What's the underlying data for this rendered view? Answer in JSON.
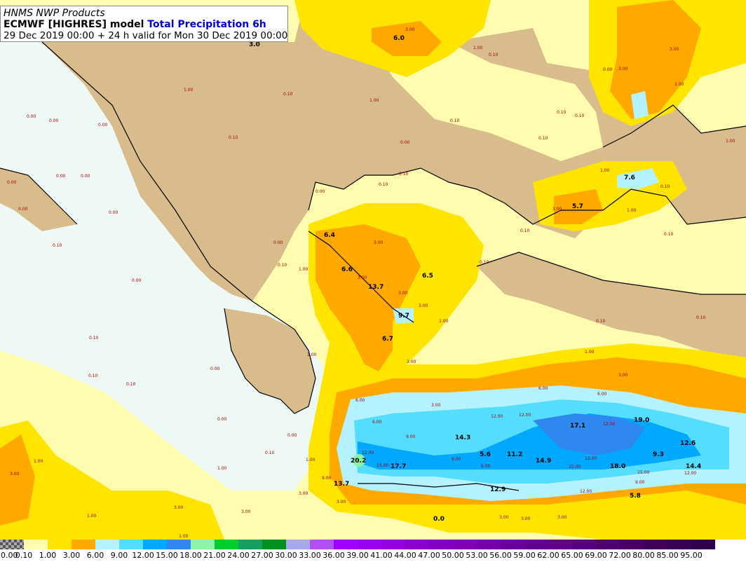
{
  "header": {
    "line1": "HNMS NWP Products",
    "model": "ECMWF [HIGHRES] model",
    "variable": "Total Precipitation 6h",
    "valid": "29 Dec 2019 00:00 + 24 h valid for Mon 30 Dec 2019 00:00"
  },
  "colors": {
    "land": "#d8bc8c",
    "sea_light": "#eef9f6",
    "c_0_1": "#fffcb0",
    "c_1_3": "#ffe400",
    "c_3_6": "#ffa800",
    "c_6_9": "#b4f2ff",
    "c_9_12": "#55ddff",
    "c_12_15": "#00a8ff",
    "c_15_18": "#2f88ee",
    "c_18_21": "#8cf5a5",
    "coast": "#000000",
    "value_label": "#000000",
    "grid_value": "#a00000"
  },
  "legend": {
    "labels": [
      "0.00",
      "0.10",
      "1.00",
      "3.00",
      "6.00",
      "9.00",
      "12.00",
      "15.00",
      "18.00",
      "21.00",
      "24.00",
      "27.00",
      "30.00",
      "33.00",
      "36.00",
      "39.00",
      "41.00",
      "44.00",
      "47.00",
      "50.00",
      "53.00",
      "56.00",
      "59.00",
      "62.00",
      "65.00",
      "69.00",
      "72.00",
      "80.00",
      "85.00",
      "95.00"
    ],
    "swatch_colors": [
      "#777777",
      "#fffcb0",
      "#ffe400",
      "#ffa800",
      "#b4f2ff",
      "#55ddff",
      "#00a8ff",
      "#2f88ee",
      "#8cf5a5",
      "#00cc30",
      "#14a060",
      "#009020",
      "#a8a8ee",
      "#b050ee",
      "#a000ff",
      "#9800ee",
      "#9400dc",
      "#8c00cc",
      "#8400c0",
      "#8000b4",
      "#7400a8",
      "#6c009c",
      "#640090",
      "#600088",
      "#580080",
      "#500070",
      "#480064",
      "#400058",
      "#380050",
      "#30004a"
    ]
  },
  "max_labels": [
    {
      "id": "v60",
      "text": "6.0"
    },
    {
      "id": "v30",
      "text": "3.0"
    },
    {
      "id": "v76",
      "text": "7.6"
    },
    {
      "id": "v57",
      "text": "5.7"
    },
    {
      "id": "v64",
      "text": "6.4"
    },
    {
      "id": "v66",
      "text": "6.6"
    },
    {
      "id": "v65",
      "text": "6.5"
    },
    {
      "id": "v137",
      "text": "13.7"
    },
    {
      "id": "v97",
      "text": "9.7"
    },
    {
      "id": "v67",
      "text": "6.7"
    },
    {
      "id": "v171",
      "text": "17.1"
    },
    {
      "id": "v190",
      "text": "19.0"
    },
    {
      "id": "v126",
      "text": "12.6"
    },
    {
      "id": "v143",
      "text": "14.3"
    },
    {
      "id": "v56",
      "text": "5.6"
    },
    {
      "id": "v112",
      "text": "11.2"
    },
    {
      "id": "v149",
      "text": "14.9"
    },
    {
      "id": "v180",
      "text": "18.0"
    },
    {
      "id": "v93",
      "text": "9.3"
    },
    {
      "id": "v144",
      "text": "14.4"
    },
    {
      "id": "v202",
      "text": "20.2"
    },
    {
      "id": "v177",
      "text": "17.7"
    },
    {
      "id": "v137b",
      "text": "13.7"
    },
    {
      "id": "v129",
      "text": "12.9"
    },
    {
      "id": "v58",
      "text": "5.8"
    },
    {
      "id": "v00",
      "text": "0.0"
    }
  ],
  "grid_values": [
    "0.00",
    "0.10",
    "1.00",
    "3.00",
    "6.00",
    "9.00",
    "12.00",
    "15.00"
  ]
}
